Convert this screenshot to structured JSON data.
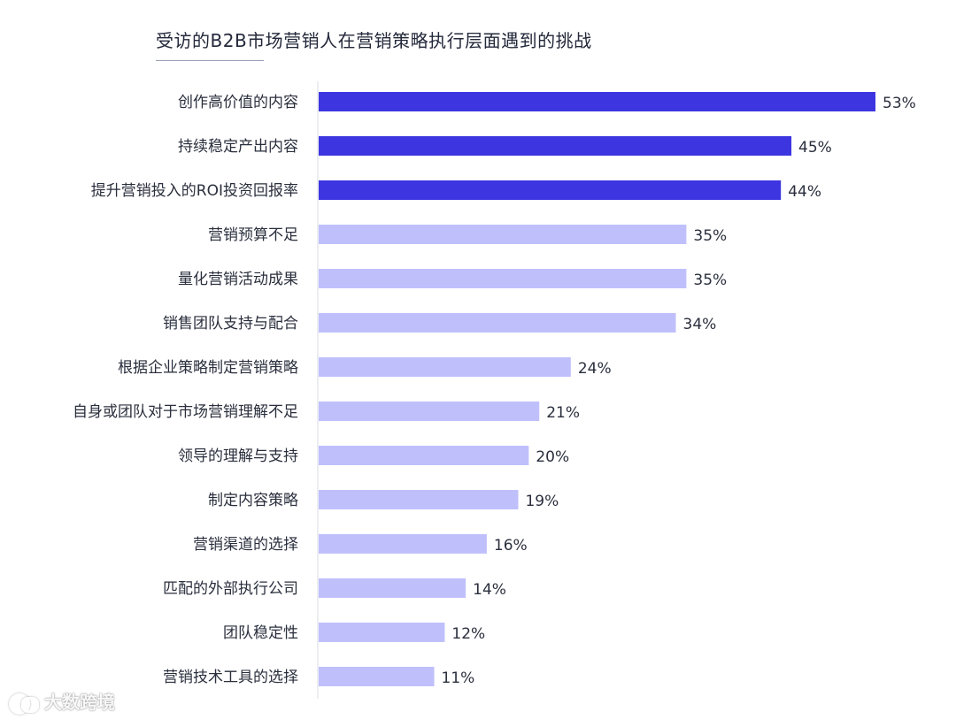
{
  "title": "受访的B2B市场营销人在营销策略执行层面遇到的挑战",
  "watermark": "大数跨境",
  "colors": {
    "highlight": "#3d35e0",
    "normal": "#bfc0fb",
    "axis": "#d9dbe3",
    "label": "#2a2f3d"
  },
  "chart_data": {
    "type": "bar",
    "orientation": "horizontal",
    "title": "受访的B2B市场营销人在营销策略执行层面遇到的挑战",
    "categories": [
      "创作高价值的内容",
      "持续稳定产出内容",
      "提升营销投入的ROI投资回报率",
      "营销预算不足",
      "量化营销活动成果",
      "销售团队支持与配合",
      "根据企业策略制定营销策略",
      "自身或团队对于市场营销理解不足",
      "领导的理解与支持",
      "制定内容策略",
      "营销渠道的选择",
      "匹配的外部执行公司",
      "团队稳定性",
      "营销技术工具的选择"
    ],
    "values": [
      53,
      45,
      44,
      35,
      35,
      34,
      24,
      21,
      20,
      19,
      16,
      14,
      12,
      11
    ],
    "value_labels": [
      "53%",
      "45%",
      "44%",
      "35%",
      "35%",
      "34%",
      "24%",
      "21%",
      "20%",
      "19%",
      "16%",
      "14%",
      "12%",
      "11%"
    ],
    "highlighted_count": 3,
    "xlim": [
      0,
      53
    ],
    "grid": false,
    "legend": "none"
  }
}
